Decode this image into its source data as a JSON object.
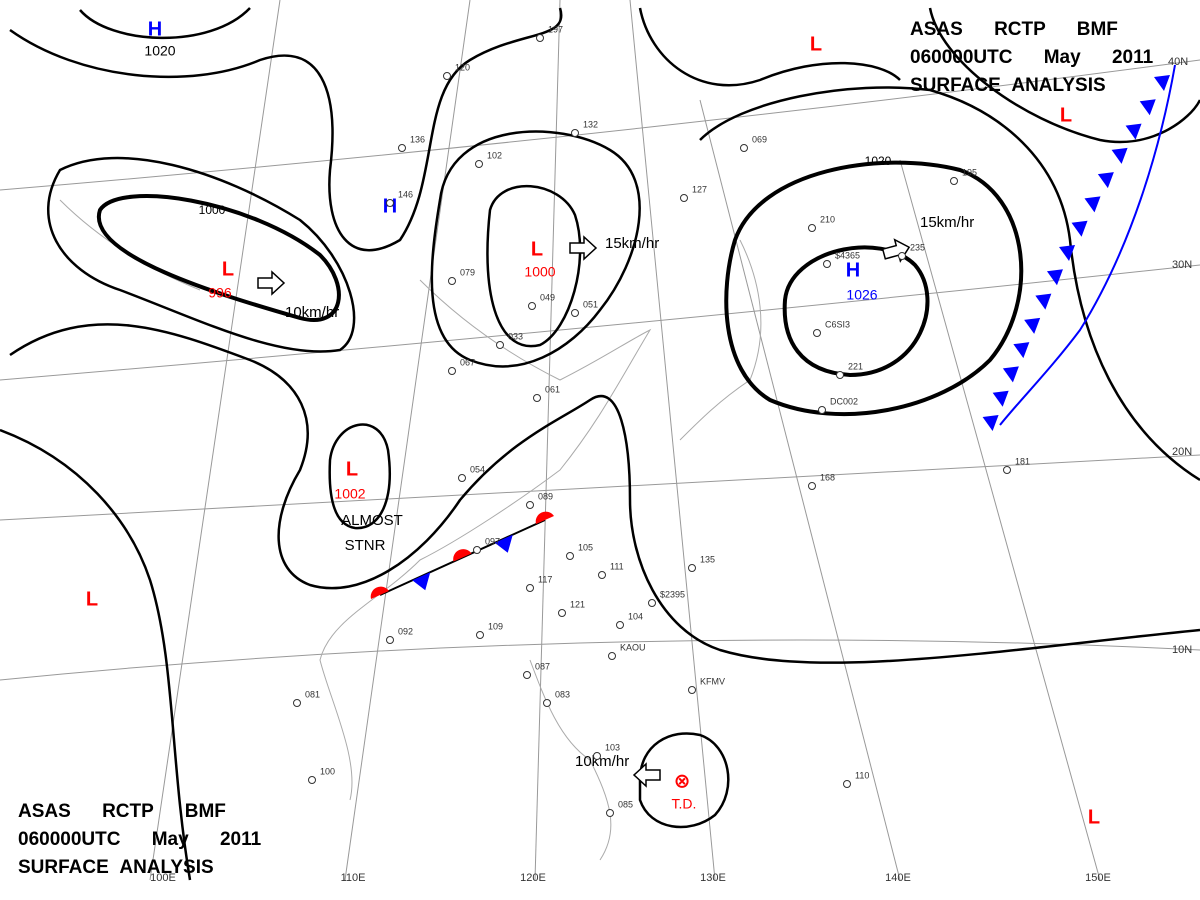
{
  "header_top": {
    "line1": "ASAS RCTP BMF",
    "line2": "060000UTC May 2011",
    "line3": "SURFACE ANALYSIS"
  },
  "header_bottom": {
    "line1": "ASAS RCTP BMF",
    "line2": "060000UTC May 2011",
    "line3": "SURFACE ANALYSIS"
  },
  "pressure_systems": [
    {
      "symbol": "H",
      "pressure": "1020"
    },
    {
      "symbol": "L",
      "pressure": "996"
    },
    {
      "symbol": "H"
    },
    {
      "symbol": "L",
      "pressure": "1000"
    },
    {
      "symbol": "H",
      "pressure": "1026"
    },
    {
      "symbol": "L",
      "pressure": "1002"
    },
    {
      "symbol": "L"
    },
    {
      "symbol": "L"
    },
    {
      "symbol": "L"
    },
    {
      "symbol": "L"
    },
    {
      "symbol": "⊗",
      "pressure": "T.D."
    }
  ],
  "isobar_labels": [
    "1000",
    "1020"
  ],
  "movements": [
    "10km/hr",
    "15km/hr",
    "15km/hr",
    "10km/hr"
  ],
  "annotations": [
    "ALMOST",
    "STNR"
  ],
  "longitude_labels": [
    "100E",
    "110E",
    "120E",
    "130E",
    "140E",
    "150E"
  ],
  "latitude_labels": [
    "40N",
    "30N",
    "20N",
    "10N"
  ],
  "stations": [
    "197",
    "120",
    "136",
    "102",
    "132",
    "146",
    "079",
    "049",
    "051",
    "033",
    "067",
    "061",
    "054",
    "089",
    "097",
    "105",
    "111",
    "117",
    "121",
    "104",
    "135",
    "092",
    "109",
    "087",
    "083",
    "103",
    "085",
    "100",
    "081",
    "168",
    "181",
    "221",
    "210",
    "235",
    "195",
    "127",
    "069",
    "110",
    "KAOU",
    "KFMV",
    "$2395",
    "$4365",
    "C6SI3",
    "DC002"
  ]
}
